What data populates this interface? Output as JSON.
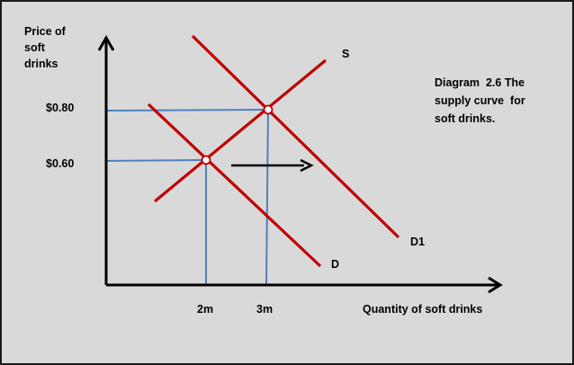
{
  "axes": {
    "y_label_lines": [
      "Price of",
      "soft",
      "drinks"
    ],
    "x_label": "Quantity of soft drinks"
  },
  "ticks": {
    "price_high": "$0.80",
    "price_low": "$0.60",
    "qty_low": "2m",
    "qty_high": "3m"
  },
  "curves": {
    "supply": "S",
    "demand_original": "D",
    "demand_shifted": "D1"
  },
  "caption_lines": [
    "Diagram  2.6 The",
    "supply curve  for",
    "soft drinks."
  ],
  "colors": {
    "curve": "#c00000",
    "guide": "#4f81bd",
    "background": "#d9d9d9"
  }
}
